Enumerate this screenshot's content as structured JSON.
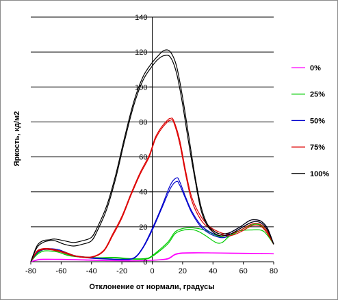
{
  "chart_data": {
    "type": "line",
    "title": "",
    "xlabel": "Отклонение от нормали, градусы",
    "ylabel": "Яркость, кд/м2",
    "xlim": [
      -80,
      80
    ],
    "ylim": [
      0,
      140
    ],
    "xticks": [
      -80,
      -60,
      -40,
      -20,
      0,
      20,
      40,
      60,
      80
    ],
    "yticks": [
      0,
      20,
      40,
      60,
      80,
      100,
      120,
      140
    ],
    "grid": "horizontal",
    "legend_position": "right",
    "series": [
      {
        "name": "0%",
        "color": "#ff00ff",
        "curves": [
          [
            [
              -80,
              0
            ],
            [
              -75,
              1
            ],
            [
              -70,
              1.2
            ],
            [
              -60,
              1.2
            ],
            [
              -50,
              1
            ],
            [
              -40,
              0.8
            ],
            [
              -30,
              0.6
            ],
            [
              -20,
              0.5
            ],
            [
              -10,
              0.5
            ],
            [
              0,
              0.8
            ],
            [
              10,
              1.5
            ],
            [
              15,
              4
            ],
            [
              20,
              4.8
            ],
            [
              30,
              5
            ],
            [
              40,
              5
            ],
            [
              50,
              4.8
            ],
            [
              60,
              4.7
            ],
            [
              70,
              4.6
            ],
            [
              80,
              4.5
            ]
          ],
          [
            [
              -80,
              0
            ],
            [
              -75,
              1.3
            ],
            [
              -70,
              1.5
            ],
            [
              -60,
              1.4
            ],
            [
              -50,
              1.2
            ],
            [
              -40,
              1
            ],
            [
              -30,
              0.7
            ],
            [
              -20,
              0.6
            ],
            [
              -10,
              0.6
            ],
            [
              0,
              0.9
            ],
            [
              10,
              1.8
            ],
            [
              15,
              4.3
            ],
            [
              20,
              5.1
            ],
            [
              30,
              5.2
            ],
            [
              40,
              5.1
            ],
            [
              50,
              5
            ],
            [
              60,
              4.9
            ],
            [
              70,
              4.8
            ],
            [
              80,
              4.6
            ]
          ]
        ]
      },
      {
        "name": "25%",
        "color": "#00cc00",
        "curves": [
          [
            [
              -80,
              0
            ],
            [
              -76,
              4
            ],
            [
              -72,
              6
            ],
            [
              -68,
              6.2
            ],
            [
              -62,
              5.5
            ],
            [
              -55,
              3.5
            ],
            [
              -45,
              2.5
            ],
            [
              -35,
              2
            ],
            [
              -25,
              2.2
            ],
            [
              -15,
              1.5
            ],
            [
              -5,
              1.5
            ],
            [
              0,
              3
            ],
            [
              10,
              10
            ],
            [
              15,
              16
            ],
            [
              20,
              18
            ],
            [
              25,
              18.5
            ],
            [
              30,
              17.5
            ],
            [
              35,
              15
            ],
            [
              42,
              11
            ],
            [
              46,
              11
            ],
            [
              50,
              14
            ],
            [
              55,
              17
            ],
            [
              60,
              18
            ],
            [
              65,
              18.2
            ],
            [
              72,
              18
            ],
            [
              76,
              15
            ],
            [
              80,
              10
            ]
          ],
          [
            [
              -80,
              0
            ],
            [
              -76,
              4.5
            ],
            [
              -72,
              6.8
            ],
            [
              -68,
              7
            ],
            [
              -62,
              6.3
            ],
            [
              -55,
              4
            ],
            [
              -45,
              2.8
            ],
            [
              -35,
              2.3
            ],
            [
              -25,
              2.5
            ],
            [
              -15,
              1.8
            ],
            [
              -5,
              1.8
            ],
            [
              0,
              3.5
            ],
            [
              10,
              11
            ],
            [
              15,
              17
            ],
            [
              20,
              19
            ],
            [
              25,
              19.5
            ],
            [
              30,
              19
            ],
            [
              35,
              18
            ],
            [
              42,
              15
            ],
            [
              48,
              14
            ],
            [
              52,
              15
            ],
            [
              58,
              18
            ],
            [
              64,
              20.5
            ],
            [
              68,
              21.5
            ],
            [
              72,
              20.5
            ],
            [
              76,
              16
            ],
            [
              80,
              10
            ]
          ]
        ]
      },
      {
        "name": "50%",
        "color": "#0000cc",
        "curves": [
          [
            [
              -80,
              0
            ],
            [
              -76,
              5
            ],
            [
              -72,
              6.8
            ],
            [
              -68,
              7
            ],
            [
              -62,
              6.5
            ],
            [
              -56,
              4.5
            ],
            [
              -50,
              3
            ],
            [
              -40,
              2
            ],
            [
              -30,
              1.5
            ],
            [
              -20,
              1.2
            ],
            [
              -12,
              2
            ],
            [
              -6,
              8
            ],
            [
              0,
              18
            ],
            [
              6,
              30
            ],
            [
              12,
              42
            ],
            [
              16,
              46
            ],
            [
              18,
              44
            ],
            [
              22,
              36
            ],
            [
              26,
              28
            ],
            [
              32,
              20
            ],
            [
              38,
              16
            ],
            [
              44,
              14
            ],
            [
              48,
              14
            ],
            [
              52,
              16
            ],
            [
              58,
              19
            ],
            [
              64,
              22
            ],
            [
              68,
              23
            ],
            [
              72,
              22
            ],
            [
              76,
              18
            ],
            [
              80,
              10
            ]
          ],
          [
            [
              -80,
              0
            ],
            [
              -76,
              5.5
            ],
            [
              -72,
              7.2
            ],
            [
              -68,
              7.5
            ],
            [
              -62,
              7
            ],
            [
              -56,
              5
            ],
            [
              -50,
              3.3
            ],
            [
              -40,
              2.3
            ],
            [
              -30,
              1.7
            ],
            [
              -20,
              1.4
            ],
            [
              -12,
              2.3
            ],
            [
              -6,
              8.5
            ],
            [
              0,
              19
            ],
            [
              6,
              31
            ],
            [
              12,
              44
            ],
            [
              16,
              48
            ],
            [
              18,
              46
            ],
            [
              22,
              37
            ],
            [
              26,
              29
            ],
            [
              32,
              21
            ],
            [
              38,
              17
            ],
            [
              44,
              15
            ],
            [
              48,
              15
            ],
            [
              52,
              17
            ],
            [
              58,
              20
            ],
            [
              64,
              23.5
            ],
            [
              68,
              24
            ],
            [
              72,
              23
            ],
            [
              76,
              19
            ],
            [
              80,
              10
            ]
          ]
        ]
      },
      {
        "name": "75%",
        "color": "#dd0000",
        "curves": [
          [
            [
              -80,
              0
            ],
            [
              -76,
              5.5
            ],
            [
              -72,
              7
            ],
            [
              -68,
              7
            ],
            [
              -62,
              6
            ],
            [
              -56,
              4.5
            ],
            [
              -50,
              3
            ],
            [
              -40,
              2.5
            ],
            [
              -32,
              6
            ],
            [
              -26,
              15
            ],
            [
              -20,
              25
            ],
            [
              -14,
              38
            ],
            [
              -8,
              50
            ],
            [
              -2,
              60
            ],
            [
              2,
              70
            ],
            [
              6,
              76
            ],
            [
              10,
              80
            ],
            [
              12,
              81
            ],
            [
              14,
              80
            ],
            [
              18,
              68
            ],
            [
              22,
              50
            ],
            [
              26,
              35
            ],
            [
              32,
              24
            ],
            [
              38,
              19
            ],
            [
              44,
              16
            ],
            [
              48,
              15
            ],
            [
              52,
              15
            ],
            [
              58,
              17
            ],
            [
              64,
              20
            ],
            [
              68,
              21
            ],
            [
              72,
              20
            ],
            [
              76,
              16
            ],
            [
              80,
              10
            ]
          ],
          [
            [
              -80,
              0
            ],
            [
              -76,
              6
            ],
            [
              -72,
              7.5
            ],
            [
              -68,
              7.5
            ],
            [
              -62,
              6.5
            ],
            [
              -56,
              5
            ],
            [
              -50,
              3.3
            ],
            [
              -40,
              2.8
            ],
            [
              -32,
              6.5
            ],
            [
              -26,
              16
            ],
            [
              -20,
              26
            ],
            [
              -14,
              39
            ],
            [
              -8,
              51
            ],
            [
              -2,
              61
            ],
            [
              2,
              71
            ],
            [
              6,
              77
            ],
            [
              10,
              81
            ],
            [
              12,
              82
            ],
            [
              14,
              81
            ],
            [
              18,
              70
            ],
            [
              22,
              52
            ],
            [
              26,
              37
            ],
            [
              32,
              26
            ],
            [
              38,
              20
            ],
            [
              44,
              17
            ],
            [
              48,
              16
            ],
            [
              52,
              16
            ],
            [
              58,
              18
            ],
            [
              64,
              21
            ],
            [
              68,
              22
            ],
            [
              72,
              21
            ],
            [
              76,
              17
            ],
            [
              80,
              10
            ]
          ]
        ]
      },
      {
        "name": "100%",
        "color": "#000000",
        "curves": [
          [
            [
              -80,
              0
            ],
            [
              -76,
              8
            ],
            [
              -72,
              11
            ],
            [
              -68,
              12
            ],
            [
              -64,
              12
            ],
            [
              -58,
              10
            ],
            [
              -52,
              9
            ],
            [
              -46,
              10
            ],
            [
              -40,
              12
            ],
            [
              -36,
              18
            ],
            [
              -30,
              30
            ],
            [
              -24,
              48
            ],
            [
              -18,
              70
            ],
            [
              -12,
              90
            ],
            [
              -6,
              104
            ],
            [
              0,
              112
            ],
            [
              4,
              116
            ],
            [
              8,
              118
            ],
            [
              12,
              117
            ],
            [
              16,
              108
            ],
            [
              20,
              90
            ],
            [
              24,
              68
            ],
            [
              28,
              48
            ],
            [
              32,
              30
            ],
            [
              36,
              21
            ],
            [
              40,
              17
            ],
            [
              44,
              15
            ],
            [
              48,
              15
            ],
            [
              52,
              16
            ],
            [
              58,
              19
            ],
            [
              64,
              22
            ],
            [
              68,
              23
            ],
            [
              72,
              22
            ],
            [
              76,
              18
            ],
            [
              80,
              10
            ]
          ],
          [
            [
              -80,
              0
            ],
            [
              -76,
              9
            ],
            [
              -72,
              12
            ],
            [
              -68,
              12.5
            ],
            [
              -64,
              13
            ],
            [
              -58,
              12
            ],
            [
              -52,
              11
            ],
            [
              -46,
              12
            ],
            [
              -40,
              14
            ],
            [
              -36,
              20
            ],
            [
              -30,
              32
            ],
            [
              -24,
              50
            ],
            [
              -18,
              72
            ],
            [
              -12,
              92
            ],
            [
              -6,
              106
            ],
            [
              0,
              114
            ],
            [
              4,
              118
            ],
            [
              8,
              121
            ],
            [
              12,
              120
            ],
            [
              16,
              112
            ],
            [
              20,
              94
            ],
            [
              24,
              72
            ],
            [
              28,
              50
            ],
            [
              32,
              32
            ],
            [
              36,
              22
            ],
            [
              40,
              18
            ],
            [
              44,
              16
            ],
            [
              48,
              16
            ],
            [
              52,
              17
            ],
            [
              58,
              20
            ],
            [
              64,
              23.5
            ],
            [
              68,
              24
            ],
            [
              72,
              23
            ],
            [
              76,
              19
            ],
            [
              80,
              10
            ]
          ]
        ]
      }
    ]
  }
}
